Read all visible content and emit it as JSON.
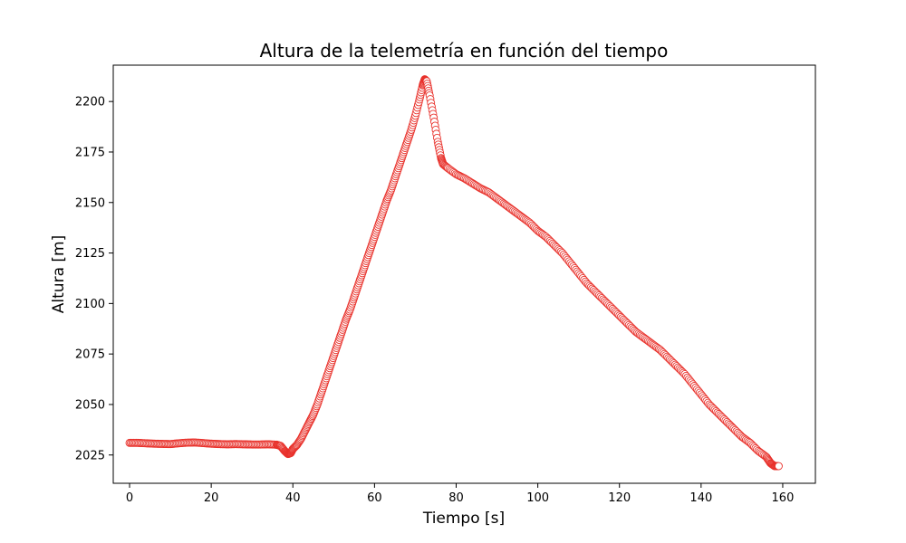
{
  "chart_data": {
    "type": "scatter",
    "title": "Altura de la telemetría en función del tiempo",
    "xlabel": "Tiempo [s]",
    "ylabel": "Altura [m]",
    "xlim": [
      -4,
      168
    ],
    "ylim": [
      2011,
      2218
    ],
    "xticks": [
      0,
      20,
      40,
      60,
      80,
      100,
      120,
      140,
      160
    ],
    "yticks": [
      2025,
      2050,
      2075,
      2100,
      2125,
      2150,
      2175,
      2200
    ],
    "grid": false,
    "marker": "hollow-circle",
    "marker_color": "#e8302a",
    "series": [
      {
        "points": [
          [
            0,
            2031
          ],
          [
            2,
            2031
          ],
          [
            4,
            2030.8
          ],
          [
            6,
            2030.6
          ],
          [
            8,
            2030.5
          ],
          [
            10,
            2030.4
          ],
          [
            12,
            2030.8
          ],
          [
            14,
            2031.1
          ],
          [
            16,
            2031.2
          ],
          [
            18,
            2030.9
          ],
          [
            20,
            2030.6
          ],
          [
            22,
            2030.4
          ],
          [
            24,
            2030.3
          ],
          [
            26,
            2030.4
          ],
          [
            28,
            2030.3
          ],
          [
            30,
            2030.2
          ],
          [
            32,
            2030.2
          ],
          [
            34,
            2030.3
          ],
          [
            36,
            2030.1
          ],
          [
            37,
            2029.5
          ],
          [
            38,
            2027
          ],
          [
            38.8,
            2025.5
          ],
          [
            39.5,
            2026
          ],
          [
            40,
            2028
          ],
          [
            41,
            2030
          ],
          [
            42,
            2033
          ],
          [
            43,
            2037
          ],
          [
            44,
            2041
          ],
          [
            45,
            2045
          ],
          [
            46,
            2050
          ],
          [
            47,
            2056
          ],
          [
            48,
            2062
          ],
          [
            49,
            2068
          ],
          [
            50,
            2074
          ],
          [
            51,
            2080
          ],
          [
            52,
            2086
          ],
          [
            53,
            2092
          ],
          [
            54,
            2097
          ],
          [
            55,
            2103
          ],
          [
            56,
            2109
          ],
          [
            57,
            2115
          ],
          [
            58,
            2121
          ],
          [
            59,
            2127
          ],
          [
            60,
            2133
          ],
          [
            61,
            2139
          ],
          [
            62,
            2145
          ],
          [
            63,
            2151
          ],
          [
            64,
            2156
          ],
          [
            65,
            2162
          ],
          [
            66,
            2168
          ],
          [
            67,
            2174
          ],
          [
            68,
            2180
          ],
          [
            69,
            2186
          ],
          [
            70,
            2193
          ],
          [
            71,
            2201
          ],
          [
            71.8,
            2208
          ],
          [
            72.3,
            2211
          ],
          [
            72.8,
            2210
          ],
          [
            73.5,
            2203
          ],
          [
            74.5,
            2192
          ],
          [
            75.5,
            2180
          ],
          [
            76.3,
            2172
          ],
          [
            76.8,
            2169
          ],
          [
            78,
            2167
          ],
          [
            80,
            2164
          ],
          [
            82,
            2162
          ],
          [
            84,
            2159.5
          ],
          [
            86,
            2157
          ],
          [
            88,
            2155
          ],
          [
            90,
            2152
          ],
          [
            92,
            2149
          ],
          [
            94,
            2146
          ],
          [
            96,
            2143
          ],
          [
            98,
            2140
          ],
          [
            100,
            2136
          ],
          [
            102,
            2133
          ],
          [
            104,
            2129
          ],
          [
            106,
            2125
          ],
          [
            108,
            2120
          ],
          [
            110,
            2115
          ],
          [
            112,
            2110
          ],
          [
            114,
            2106
          ],
          [
            116,
            2102
          ],
          [
            118,
            2098
          ],
          [
            120,
            2094
          ],
          [
            122,
            2090
          ],
          [
            124,
            2086
          ],
          [
            126,
            2083
          ],
          [
            128,
            2080
          ],
          [
            130,
            2077
          ],
          [
            132,
            2073
          ],
          [
            134,
            2069
          ],
          [
            136,
            2065
          ],
          [
            138,
            2060
          ],
          [
            140,
            2055
          ],
          [
            142,
            2050
          ],
          [
            144,
            2046
          ],
          [
            146,
            2042
          ],
          [
            148,
            2038
          ],
          [
            150,
            2034
          ],
          [
            152,
            2031
          ],
          [
            154,
            2027
          ],
          [
            156,
            2024
          ],
          [
            157,
            2021
          ],
          [
            158,
            2019.5
          ],
          [
            159,
            2019.5
          ]
        ]
      }
    ]
  }
}
